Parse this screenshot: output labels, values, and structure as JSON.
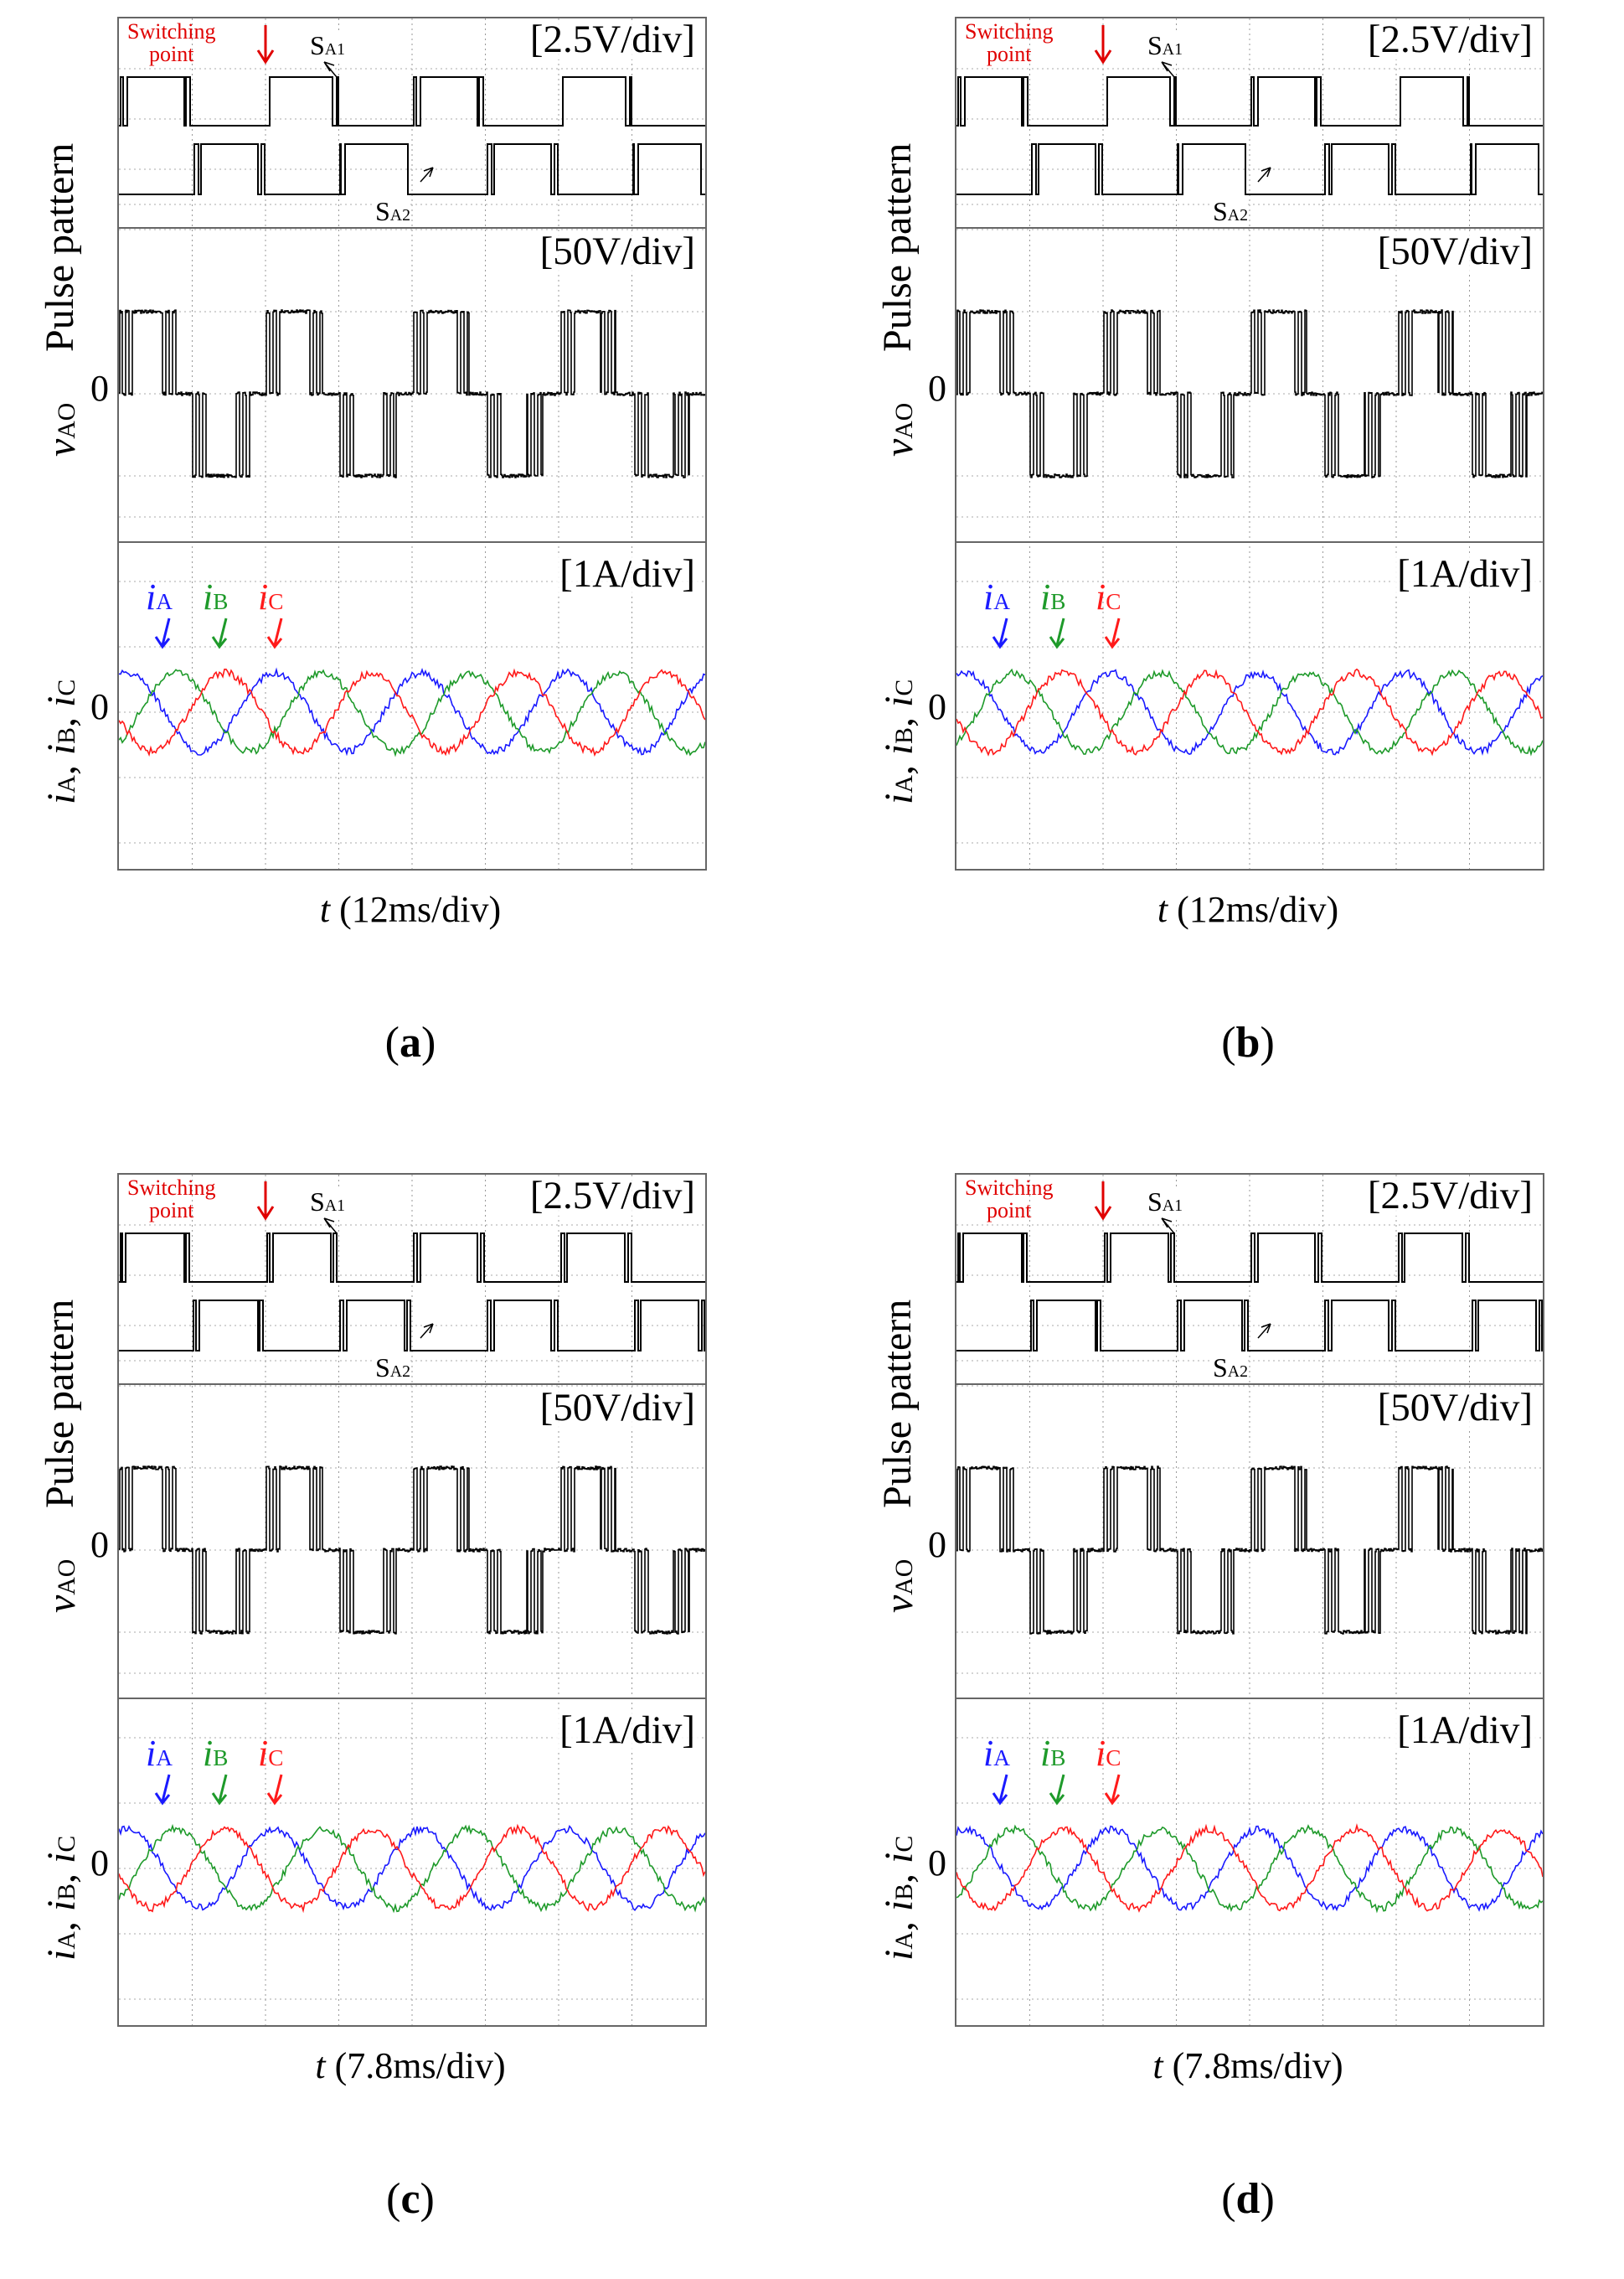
{
  "figure": {
    "ylabels": {
      "pulse": "Pulse pattern",
      "vao_sym": "v",
      "vao_sub": "AO",
      "currents_sym": [
        "i",
        "i",
        "i"
      ],
      "currents_sub": [
        "A",
        "B",
        "C"
      ],
      "currents_sep": ", "
    },
    "zero_label": "0",
    "scales": {
      "pulse": "[2.5V/div]",
      "voltage": "[50V/div]",
      "current": "[1A/div]"
    },
    "annotations": {
      "switching_point_line1": "Switching",
      "switching_point_line2": "point",
      "sa1": "S",
      "sa1_sub": "A1",
      "sa2": "S",
      "sa2_sub": "A2"
    },
    "current_legend": [
      {
        "sym": "i",
        "sub": "A",
        "color": "#1a1aff"
      },
      {
        "sym": "i",
        "sub": "B",
        "color": "#1e9a2a"
      },
      {
        "sym": "i",
        "sub": "C",
        "color": "#ff1a1a"
      }
    ],
    "colors": {
      "trace": "#000000",
      "phase_a": "#1a1aff",
      "phase_b": "#1e9a2a",
      "phase_c": "#ff1a1a",
      "annotation": "#e00000"
    }
  },
  "panels": [
    {
      "id": "a",
      "caption": "a",
      "xlabel_t": "t",
      "xlabel_rest": " (12ms/div)"
    },
    {
      "id": "b",
      "caption": "b",
      "xlabel_t": "t",
      "xlabel_rest": " (12ms/div)"
    },
    {
      "id": "c",
      "caption": "c",
      "xlabel_t": "t",
      "xlabel_rest": " (7.8ms/div)"
    },
    {
      "id": "d",
      "caption": "d",
      "xlabel_t": "t",
      "xlabel_rest": " (7.8ms/div)"
    }
  ],
  "chart_data": [
    {
      "type": "line",
      "panel": "a",
      "subplots": [
        "Pulse pattern",
        "vAO",
        "iA, iB, iC"
      ],
      "x_div": "12ms/div",
      "x_divisions": 8,
      "fundamental_cycles": 4.0,
      "series": [
        {
          "name": "SA1",
          "scale": "2.5V/div",
          "levels": [
            0,
            1
          ]
        },
        {
          "name": "SA2",
          "scale": "2.5V/div",
          "levels": [
            0,
            1
          ]
        },
        {
          "name": "vAO",
          "scale": "50V/div",
          "levels_div": [
            -1,
            0,
            1
          ]
        },
        {
          "name": "iA",
          "scale": "1A/div",
          "amplitude_div": 0.6,
          "phase_deg": 0
        },
        {
          "name": "iB",
          "scale": "1A/div",
          "amplitude_div": 0.6,
          "phase_deg": -120
        },
        {
          "name": "iC",
          "scale": "1A/div",
          "amplitude_div": 0.6,
          "phase_deg": 120
        }
      ]
    },
    {
      "type": "line",
      "panel": "b",
      "subplots": [
        "Pulse pattern",
        "vAO",
        "iA, iB, iC"
      ],
      "x_div": "12ms/div",
      "x_divisions": 8,
      "fundamental_cycles": 4.0,
      "series": [
        {
          "name": "SA1",
          "scale": "2.5V/div",
          "levels": [
            0,
            1
          ]
        },
        {
          "name": "SA2",
          "scale": "2.5V/div",
          "levels": [
            0,
            1
          ]
        },
        {
          "name": "vAO",
          "scale": "50V/div",
          "levels_div": [
            -1,
            0,
            1
          ]
        },
        {
          "name": "iA",
          "scale": "1A/div",
          "amplitude_div": 0.6,
          "phase_deg": 0
        },
        {
          "name": "iB",
          "scale": "1A/div",
          "amplitude_div": 0.6,
          "phase_deg": -120
        },
        {
          "name": "iC",
          "scale": "1A/div",
          "amplitude_div": 0.6,
          "phase_deg": 120
        }
      ]
    },
    {
      "type": "line",
      "panel": "c",
      "subplots": [
        "Pulse pattern",
        "vAO",
        "iA, iB, iC"
      ],
      "x_div": "7.8ms/div",
      "x_divisions": 8,
      "fundamental_cycles": 4.0,
      "series": [
        {
          "name": "SA1",
          "scale": "2.5V/div",
          "levels": [
            0,
            1
          ]
        },
        {
          "name": "SA2",
          "scale": "2.5V/div",
          "levels": [
            0,
            1
          ]
        },
        {
          "name": "vAO",
          "scale": "50V/div",
          "levels_div": [
            -1,
            0,
            1
          ]
        },
        {
          "name": "iA",
          "scale": "1A/div",
          "amplitude_div": 0.6,
          "phase_deg": 0
        },
        {
          "name": "iB",
          "scale": "1A/div",
          "amplitude_div": 0.6,
          "phase_deg": -120
        },
        {
          "name": "iC",
          "scale": "1A/div",
          "amplitude_div": 0.6,
          "phase_deg": 120
        }
      ]
    },
    {
      "type": "line",
      "panel": "d",
      "subplots": [
        "Pulse pattern",
        "vAO",
        "iA, iB, iC"
      ],
      "x_div": "7.8ms/div",
      "x_divisions": 8,
      "fundamental_cycles": 4.0,
      "series": [
        {
          "name": "SA1",
          "scale": "2.5V/div",
          "levels": [
            0,
            1
          ]
        },
        {
          "name": "SA2",
          "scale": "2.5V/div",
          "levels": [
            0,
            1
          ]
        },
        {
          "name": "vAO",
          "scale": "50V/div",
          "levels_div": [
            -1,
            0,
            1
          ]
        },
        {
          "name": "iA",
          "scale": "1A/div",
          "amplitude_div": 0.6,
          "phase_deg": 0
        },
        {
          "name": "iB",
          "scale": "1A/div",
          "amplitude_div": 0.6,
          "phase_deg": -120
        },
        {
          "name": "iC",
          "scale": "1A/div",
          "amplitude_div": 0.6,
          "phase_deg": 120
        }
      ]
    }
  ]
}
